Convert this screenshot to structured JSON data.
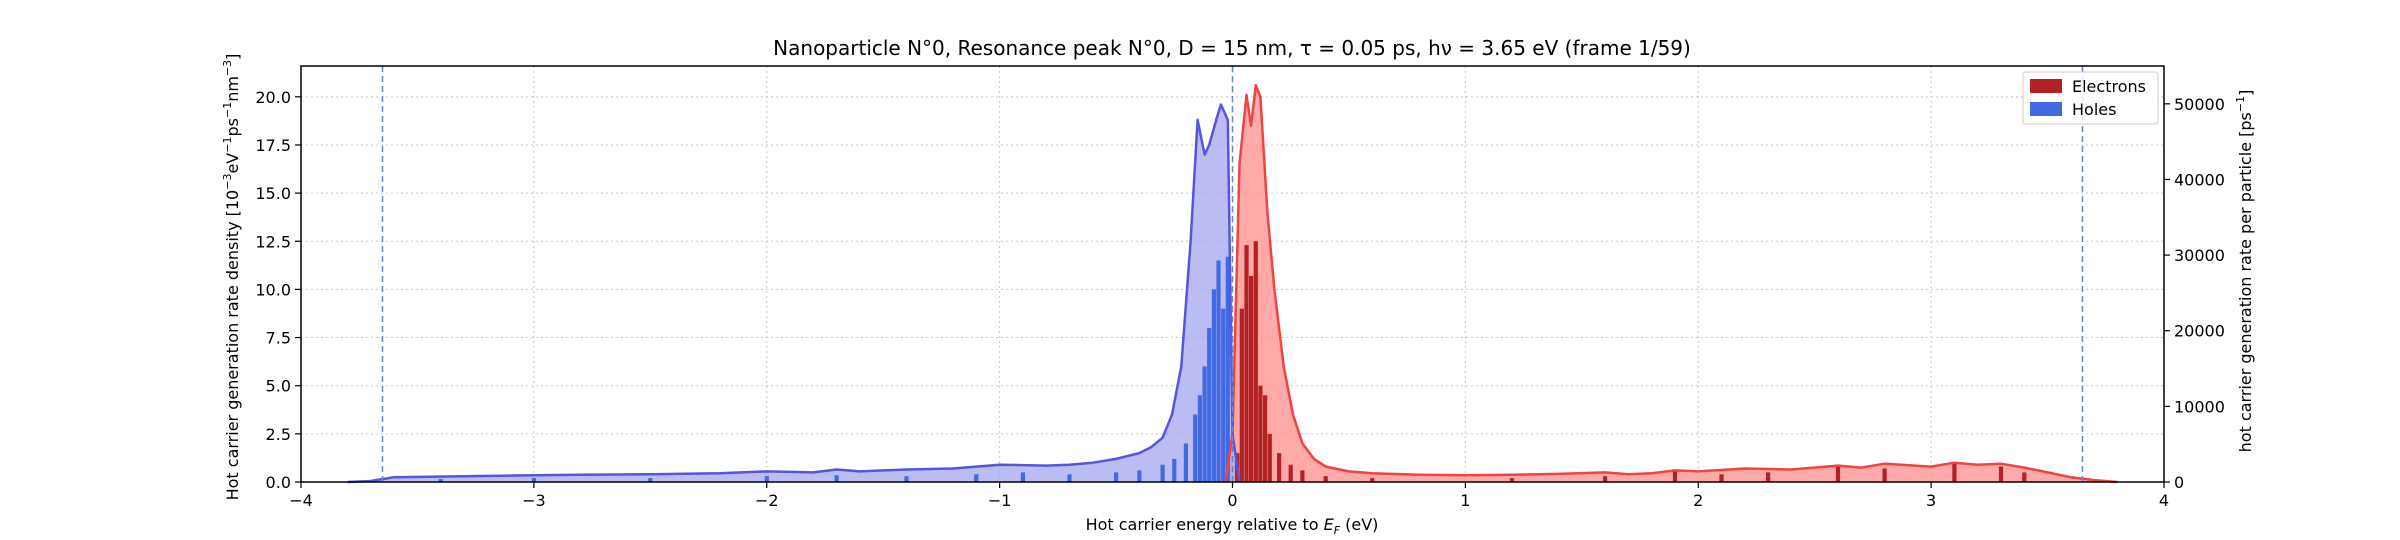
{
  "chart_data": {
    "type": "area",
    "title": "Nanoparticle N°0, Resonance peak N°0, D = 15 nm, τ = 0.05 ps, hν = 3.65 eV   (frame 1/59)",
    "xlabel": "Hot carrier energy relative to E_F (eV)",
    "ylabel_left": "Hot carrier generation rate density [10⁻³eV⁻¹ps⁻¹nm⁻³]",
    "ylabel_right": "hot carrier generation rate per particle [ps⁻¹]",
    "xlim": [
      -4,
      4
    ],
    "ylim_left": [
      0,
      21.6
    ],
    "ylim_right": [
      0,
      55000
    ],
    "x_ticks": [
      -4,
      -3,
      -2,
      -1,
      0,
      1,
      2,
      3,
      4
    ],
    "x_tick_labels": [
      "−4",
      "−3",
      "−2",
      "−1",
      "0",
      "1",
      "2",
      "3",
      "4"
    ],
    "y_left_ticks": [
      0,
      2.5,
      5,
      7.5,
      10,
      12.5,
      15,
      17.5,
      20
    ],
    "y_left_tick_labels": [
      "0.0",
      "2.5",
      "5.0",
      "7.5",
      "10.0",
      "12.5",
      "15.0",
      "17.5",
      "20.0"
    ],
    "y_right_ticks": [
      0,
      10000,
      20000,
      30000,
      40000,
      50000
    ],
    "y_right_tick_labels": [
      "0",
      "10000",
      "20000",
      "30000",
      "40000",
      "50000"
    ],
    "vlines": [
      -3.65,
      0,
      3.65
    ],
    "grid": true,
    "legend_position": "top-right",
    "colors": {
      "electrons_bar": "#b22222",
      "electrons_fill": "#ff8c8c",
      "electrons_line": "#ee4444",
      "holes_bar": "#4169e1",
      "holes_fill": "#a6a6f2",
      "holes_line": "#5555dd",
      "vline": "#6688bb",
      "grid": "#c8c8c8"
    },
    "series": [
      {
        "name": "Electrons",
        "curve": [
          [
            -0.03,
            0
          ],
          [
            0,
            2.5
          ],
          [
            0.03,
            16.5
          ],
          [
            0.06,
            20.1
          ],
          [
            0.08,
            18.5
          ],
          [
            0.1,
            20.6
          ],
          [
            0.12,
            20.0
          ],
          [
            0.15,
            14.0
          ],
          [
            0.18,
            10.0
          ],
          [
            0.22,
            6.0
          ],
          [
            0.26,
            3.5
          ],
          [
            0.3,
            2.0
          ],
          [
            0.35,
            1.2
          ],
          [
            0.4,
            0.8
          ],
          [
            0.5,
            0.55
          ],
          [
            0.6,
            0.45
          ],
          [
            0.8,
            0.38
          ],
          [
            1.0,
            0.35
          ],
          [
            1.2,
            0.38
          ],
          [
            1.4,
            0.42
          ],
          [
            1.6,
            0.5
          ],
          [
            1.7,
            0.4
          ],
          [
            1.8,
            0.45
          ],
          [
            1.9,
            0.6
          ],
          [
            2.0,
            0.55
          ],
          [
            2.2,
            0.7
          ],
          [
            2.4,
            0.65
          ],
          [
            2.6,
            0.85
          ],
          [
            2.7,
            0.75
          ],
          [
            2.8,
            0.95
          ],
          [
            3.0,
            0.8
          ],
          [
            3.1,
            1.0
          ],
          [
            3.2,
            0.9
          ],
          [
            3.3,
            0.95
          ],
          [
            3.4,
            0.75
          ],
          [
            3.5,
            0.5
          ],
          [
            3.6,
            0.25
          ],
          [
            3.7,
            0.1
          ],
          [
            3.8,
            0
          ]
        ],
        "bars": [
          [
            0.02,
            1.5
          ],
          [
            0.04,
            9.0
          ],
          [
            0.06,
            12.3
          ],
          [
            0.08,
            10.7
          ],
          [
            0.1,
            12.5
          ],
          [
            0.12,
            5.0
          ],
          [
            0.14,
            4.5
          ],
          [
            0.16,
            2.5
          ],
          [
            0.2,
            1.5
          ],
          [
            0.25,
            0.9
          ],
          [
            0.3,
            0.6
          ],
          [
            0.4,
            0.3
          ],
          [
            0.6,
            0.2
          ],
          [
            1.2,
            0.2
          ],
          [
            1.6,
            0.3
          ],
          [
            1.9,
            0.6
          ],
          [
            2.1,
            0.4
          ],
          [
            2.3,
            0.5
          ],
          [
            2.6,
            0.9
          ],
          [
            2.8,
            0.7
          ],
          [
            3.1,
            1.0
          ],
          [
            3.3,
            0.8
          ],
          [
            3.4,
            0.5
          ]
        ]
      },
      {
        "name": "Holes",
        "curve": [
          [
            0.03,
            0
          ],
          [
            0,
            2.5
          ],
          [
            -0.02,
            18.8
          ],
          [
            -0.05,
            19.6
          ],
          [
            -0.07,
            18.8
          ],
          [
            -0.1,
            17.5
          ],
          [
            -0.12,
            17.0
          ],
          [
            -0.15,
            18.8
          ],
          [
            -0.18,
            12.5
          ],
          [
            -0.22,
            6.0
          ],
          [
            -0.26,
            3.5
          ],
          [
            -0.3,
            2.3
          ],
          [
            -0.35,
            1.8
          ],
          [
            -0.4,
            1.5
          ],
          [
            -0.5,
            1.2
          ],
          [
            -0.6,
            1.0
          ],
          [
            -0.7,
            0.9
          ],
          [
            -0.8,
            0.85
          ],
          [
            -1.0,
            0.9
          ],
          [
            -1.2,
            0.7
          ],
          [
            -1.4,
            0.65
          ],
          [
            -1.6,
            0.55
          ],
          [
            -1.7,
            0.65
          ],
          [
            -1.8,
            0.5
          ],
          [
            -2.0,
            0.55
          ],
          [
            -2.2,
            0.45
          ],
          [
            -2.5,
            0.4
          ],
          [
            -2.8,
            0.38
          ],
          [
            -3.0,
            0.35
          ],
          [
            -3.3,
            0.3
          ],
          [
            -3.6,
            0.25
          ],
          [
            -3.7,
            0.05
          ],
          [
            -3.8,
            0
          ]
        ],
        "bars": [
          [
            -0.02,
            11.7
          ],
          [
            -0.04,
            9.0
          ],
          [
            -0.06,
            11.5
          ],
          [
            -0.08,
            10.0
          ],
          [
            -0.1,
            8.0
          ],
          [
            -0.12,
            6.0
          ],
          [
            -0.14,
            4.5
          ],
          [
            -0.16,
            3.5
          ],
          [
            -0.2,
            2.0
          ],
          [
            -0.25,
            1.2
          ],
          [
            -0.3,
            0.9
          ],
          [
            -0.4,
            0.6
          ],
          [
            -0.5,
            0.5
          ],
          [
            -0.7,
            0.4
          ],
          [
            -0.9,
            0.5
          ],
          [
            -1.1,
            0.4
          ],
          [
            -1.4,
            0.3
          ],
          [
            -1.7,
            0.35
          ],
          [
            -2.0,
            0.3
          ],
          [
            -2.5,
            0.2
          ],
          [
            -3.0,
            0.2
          ],
          [
            -3.4,
            0.15
          ]
        ]
      }
    ]
  }
}
